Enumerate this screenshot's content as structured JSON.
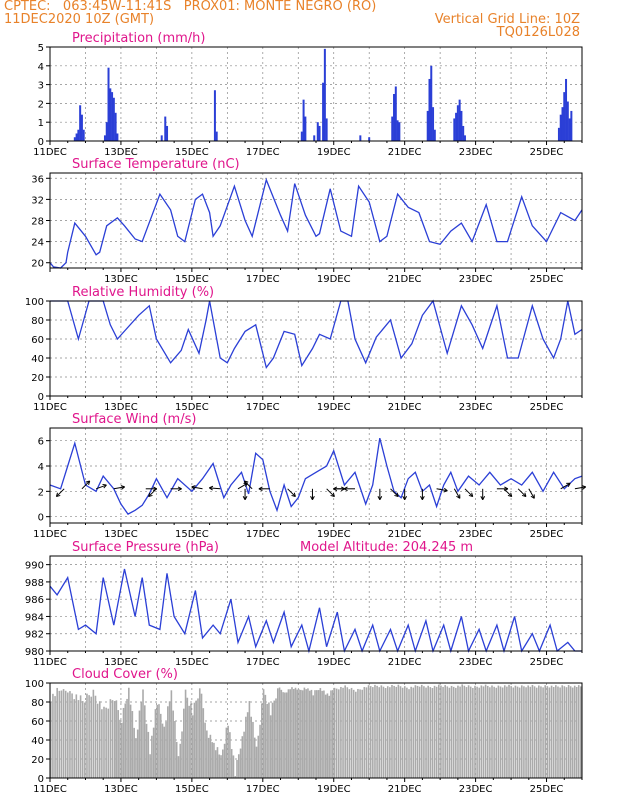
{
  "header": {
    "line1_left": "CPTEC:   063:45W-11:41S   PROX01: MONTE NEGRO (RO)",
    "line2_left": "11DEC2020 10Z (GMT)",
    "line2_right": "Vertical Grid Line: 10Z",
    "line3_right": "TQ0126L028"
  },
  "colors": {
    "header": "#e8822a",
    "title": "#e0168c",
    "series": "#2b3fd6",
    "cloud": "#aaaaaa",
    "grid": "#888888"
  },
  "chart_data": [
    {
      "type": "bar",
      "title": "Precipitation (mm/h)",
      "ylim": [
        0,
        5
      ],
      "yticks": [
        "0",
        "1",
        "2",
        "3",
        "4",
        "5"
      ],
      "x_labels": [
        "11DEC",
        "13DEC",
        "15DEC",
        "17DEC",
        "19DEC",
        "21DEC",
        "23DEC",
        "25DEC"
      ],
      "x_label_days": [
        0,
        2,
        4,
        6,
        8,
        10,
        12,
        14
      ],
      "x_range_days": [
        0,
        15
      ],
      "spikes": [
        [
          0.7,
          0.2
        ],
        [
          0.75,
          0.4
        ],
        [
          0.8,
          0.6
        ],
        [
          0.85,
          1.9
        ],
        [
          0.9,
          1.4
        ],
        [
          0.95,
          0.6
        ],
        [
          1.55,
          0.3
        ],
        [
          1.6,
          1.0
        ],
        [
          1.65,
          3.9
        ],
        [
          1.7,
          2.8
        ],
        [
          1.75,
          2.6
        ],
        [
          1.8,
          2.3
        ],
        [
          1.85,
          1.5
        ],
        [
          1.9,
          0.4
        ],
        [
          3.15,
          0.3
        ],
        [
          3.25,
          1.3
        ],
        [
          3.3,
          0.8
        ],
        [
          4.65,
          2.7
        ],
        [
          4.7,
          0.5
        ],
        [
          7.1,
          0.5
        ],
        [
          7.15,
          2.2
        ],
        [
          7.2,
          1.3
        ],
        [
          7.45,
          0.3
        ],
        [
          7.55,
          1.0
        ],
        [
          7.6,
          0.8
        ],
        [
          7.7,
          3.1
        ],
        [
          7.75,
          4.9
        ],
        [
          7.8,
          1.2
        ],
        [
          8.75,
          0.3
        ],
        [
          9.0,
          0.2
        ],
        [
          9.65,
          1.3
        ],
        [
          9.7,
          2.5
        ],
        [
          9.75,
          2.9
        ],
        [
          9.8,
          1.1
        ],
        [
          9.85,
          1.0
        ],
        [
          10.65,
          1.6
        ],
        [
          10.7,
          3.3
        ],
        [
          10.75,
          4.0
        ],
        [
          10.8,
          1.8
        ],
        [
          10.85,
          0.6
        ],
        [
          11.4,
          1.2
        ],
        [
          11.45,
          1.5
        ],
        [
          11.5,
          1.9
        ],
        [
          11.55,
          2.2
        ],
        [
          11.6,
          1.6
        ],
        [
          11.65,
          0.8
        ],
        [
          11.7,
          0.3
        ],
        [
          14.35,
          0.7
        ],
        [
          14.4,
          1.4
        ],
        [
          14.45,
          1.8
        ],
        [
          14.5,
          2.6
        ],
        [
          14.55,
          3.3
        ],
        [
          14.6,
          2.1
        ],
        [
          14.65,
          1.2
        ],
        [
          14.7,
          1.6
        ]
      ]
    },
    {
      "type": "line",
      "title": "Surface Temperature (nC)",
      "ylim": [
        19,
        37
      ],
      "yticks": [
        "20",
        "24",
        "28",
        "32",
        "36"
      ],
      "x_labels": [
        "13DEC",
        "15DEC",
        "17DEC",
        "19DEC",
        "21DEC",
        "23DEC",
        "25DEC"
      ],
      "x_label_days": [
        2,
        4,
        6,
        8,
        10,
        12,
        14
      ],
      "x": [
        0,
        0.1,
        0.3,
        0.45,
        0.5,
        0.7,
        1.0,
        1.3,
        1.4,
        1.6,
        1.9,
        2.1,
        2.4,
        2.6,
        3.1,
        3.4,
        3.6,
        3.8,
        4.1,
        4.3,
        4.5,
        4.6,
        4.8,
        5.2,
        5.5,
        5.7,
        6.1,
        6.5,
        6.7,
        6.9,
        7.2,
        7.5,
        7.6,
        7.9,
        8.2,
        8.5,
        8.7,
        9.0,
        9.3,
        9.5,
        9.8,
        10.1,
        10.4,
        10.7,
        11.0,
        11.3,
        11.6,
        11.9,
        12.3,
        12.6,
        12.9,
        13.3,
        13.6,
        14.0,
        14.4,
        14.8,
        15.0
      ],
      "y": [
        20,
        19.2,
        19,
        20,
        22,
        27.5,
        25,
        21.5,
        22,
        27,
        28.5,
        27,
        24.5,
        24,
        33,
        30,
        25,
        24,
        32,
        33,
        29.5,
        25,
        27,
        34.5,
        28,
        25,
        35.7,
        29,
        26,
        35,
        29,
        25,
        25.5,
        34,
        26,
        25,
        34.5,
        31.5,
        24,
        25,
        33,
        30.5,
        29.5,
        24,
        23.5,
        26,
        27.5,
        24,
        31,
        24,
        24,
        32.5,
        27,
        24,
        29.5,
        28,
        30
      ]
    },
    {
      "type": "line",
      "title": "Relative Humidity (%)",
      "ylim": [
        0,
        100
      ],
      "yticks": [
        "0",
        "20",
        "40",
        "60",
        "80",
        "100"
      ],
      "x_labels": [
        "11DEC",
        "13DEC",
        "15DEC",
        "17DEC",
        "19DEC",
        "21DEC",
        "23DEC",
        "25DEC"
      ],
      "x_label_days": [
        0,
        2,
        4,
        6,
        8,
        10,
        12,
        14
      ],
      "x": [
        0,
        0.5,
        0.8,
        1.1,
        1.5,
        1.7,
        1.9,
        2.5,
        2.8,
        3.0,
        3.4,
        3.7,
        3.9,
        4.2,
        4.4,
        4.5,
        4.8,
        5.0,
        5.2,
        5.5,
        5.8,
        6.1,
        6.3,
        6.6,
        6.9,
        7.1,
        7.4,
        7.6,
        7.9,
        8.2,
        8.4,
        8.6,
        8.9,
        9.2,
        9.6,
        9.9,
        10.2,
        10.5,
        10.8,
        11.2,
        11.6,
        11.9,
        12.2,
        12.6,
        12.9,
        13.2,
        13.6,
        13.9,
        14.2,
        14.4,
        14.6,
        14.8,
        15.0
      ],
      "y": [
        100,
        100,
        60,
        100,
        100,
        75,
        60,
        85,
        95,
        60,
        35,
        48,
        70,
        45,
        80,
        100,
        40,
        35,
        50,
        68,
        75,
        30,
        40,
        68,
        65,
        32,
        50,
        65,
        60,
        100,
        100,
        60,
        35,
        62,
        80,
        40,
        55,
        85,
        100,
        45,
        95,
        75,
        50,
        95,
        40,
        40,
        95,
        60,
        40,
        60,
        100,
        65,
        70
      ]
    },
    {
      "type": "line",
      "title": "Surface Wind (m/s)",
      "ylim": [
        -0.5,
        7
      ],
      "yticks": [
        "0",
        "2",
        "4",
        "6"
      ],
      "x_labels": [
        "11DEC",
        "13DEC",
        "15DEC",
        "17DEC",
        "19DEC",
        "21DEC",
        "23DEC",
        "25DEC"
      ],
      "x_label_days": [
        0,
        2,
        4,
        6,
        8,
        10,
        12,
        14
      ],
      "x": [
        0,
        0.3,
        0.5,
        0.7,
        1.0,
        1.3,
        1.5,
        1.8,
        2.0,
        2.2,
        2.4,
        2.6,
        2.8,
        3.0,
        3.3,
        3.6,
        4.0,
        4.3,
        4.6,
        4.9,
        5.1,
        5.4,
        5.6,
        5.8,
        6.0,
        6.2,
        6.4,
        6.6,
        6.8,
        7.0,
        7.2,
        7.5,
        7.8,
        8.0,
        8.3,
        8.6,
        8.9,
        9.1,
        9.3,
        9.5,
        9.7,
        9.9,
        10.1,
        10.3,
        10.5,
        10.7,
        10.9,
        11.1,
        11.3,
        11.5,
        11.8,
        12.1,
        12.4,
        12.7,
        13.0,
        13.3,
        13.6,
        13.9,
        14.2,
        14.5,
        14.8,
        15.0
      ],
      "y": [
        2.5,
        2.2,
        4,
        5.8,
        2.5,
        2.0,
        3.2,
        2.2,
        1.0,
        0.2,
        0.5,
        0.9,
        1.8,
        3.0,
        1.5,
        3.0,
        2.0,
        3.0,
        4.2,
        1.5,
        2.5,
        3.5,
        1.8,
        5.0,
        4.5,
        2.0,
        0.5,
        2.5,
        0.8,
        1.5,
        3.0,
        3.5,
        4.0,
        5.2,
        2.5,
        3.5,
        1.0,
        2.5,
        6.2,
        4.0,
        2.0,
        1.5,
        3.0,
        3.5,
        2.0,
        2.5,
        0.8,
        2.5,
        3.5,
        2.0,
        3.2,
        2.5,
        3.5,
        2.5,
        3.0,
        2.5,
        3.5,
        2.0,
        3.5,
        2.2,
        3.0,
        3.2
      ],
      "barbs": [
        [
          0.4,
          225
        ],
        [
          0.9,
          45
        ],
        [
          1.3,
          70
        ],
        [
          1.8,
          80
        ],
        [
          2.7,
          90
        ],
        [
          3.0,
          225
        ],
        [
          3.4,
          90
        ],
        [
          4.3,
          280
        ],
        [
          4.8,
          275
        ],
        [
          5.3,
          60
        ],
        [
          5.5,
          180
        ],
        [
          5.7,
          315
        ],
        [
          6.2,
          270
        ],
        [
          6.7,
          135
        ],
        [
          7.4,
          180
        ],
        [
          7.8,
          135
        ],
        [
          8.0,
          90
        ],
        [
          8.3,
          270
        ],
        [
          8.6,
          270
        ],
        [
          9.3,
          180
        ],
        [
          9.6,
          135
        ],
        [
          10.0,
          180
        ],
        [
          10.5,
          180
        ],
        [
          10.9,
          100
        ],
        [
          11.4,
          150
        ],
        [
          11.7,
          135
        ],
        [
          12.2,
          180
        ],
        [
          12.6,
          90
        ],
        [
          12.8,
          135
        ],
        [
          13.2,
          135
        ],
        [
          13.5,
          150
        ],
        [
          14.4,
          60
        ],
        [
          14.8,
          80
        ]
      ]
    },
    {
      "type": "line",
      "title": "Surface Pressure (hPa)",
      "subtitle": "Model Altitude: 204.245 m",
      "ylim": [
        980,
        991
      ],
      "yticks": [
        "980",
        "982",
        "984",
        "986",
        "988",
        "990"
      ],
      "x_labels": [
        "11DEC",
        "13DEC",
        "15DEC",
        "17DEC",
        "19DEC",
        "21DEC",
        "23DEC",
        "25DEC"
      ],
      "x_label_days": [
        0,
        2,
        4,
        6,
        8,
        10,
        12,
        14
      ],
      "x": [
        0,
        0.2,
        0.5,
        0.8,
        1.0,
        1.3,
        1.5,
        1.8,
        2.1,
        2.4,
        2.6,
        2.8,
        3.1,
        3.3,
        3.5,
        3.8,
        4.1,
        4.3,
        4.6,
        4.8,
        5.1,
        5.3,
        5.6,
        5.8,
        6.1,
        6.3,
        6.6,
        6.8,
        7.1,
        7.3,
        7.6,
        7.8,
        8.1,
        8.3,
        8.6,
        8.8,
        9.1,
        9.3,
        9.6,
        9.8,
        10.1,
        10.3,
        10.6,
        10.8,
        11.1,
        11.3,
        11.6,
        11.8,
        12.1,
        12.3,
        12.6,
        12.8,
        13.1,
        13.3,
        13.6,
        13.8,
        14.1,
        14.3,
        14.6,
        14.8,
        15.0
      ],
      "y": [
        987.5,
        986.5,
        988.5,
        982.5,
        983,
        982,
        988.5,
        983,
        989.5,
        984,
        988.5,
        983,
        982.5,
        989,
        984,
        982,
        987,
        981.5,
        983,
        982,
        986,
        981,
        984,
        980.5,
        983.5,
        981,
        984.5,
        980.5,
        983,
        980,
        985,
        980.5,
        984.5,
        980,
        982.5,
        980,
        983,
        980,
        982.5,
        980,
        983,
        980,
        983.5,
        980,
        983,
        980,
        984,
        980,
        982.5,
        980,
        983,
        980,
        984,
        980,
        982,
        980,
        983,
        980,
        981,
        980,
        980
      ]
    },
    {
      "type": "bar",
      "title": "Cloud Cover (%)",
      "ylim": [
        0,
        100
      ],
      "yticks": [
        "0",
        "20",
        "40",
        "60",
        "80",
        "100"
      ],
      "x_labels": [
        "11DEC",
        "13DEC",
        "15DEC",
        "17DEC",
        "19DEC",
        "21DEC",
        "23DEC",
        "25DEC"
      ],
      "x_label_days": [
        0,
        2,
        4,
        6,
        8,
        10,
        12,
        14
      ],
      "profile": [
        [
          0.0,
          85
        ],
        [
          0.3,
          93
        ],
        [
          0.6,
          90
        ],
        [
          0.9,
          80
        ],
        [
          1.2,
          92
        ],
        [
          1.5,
          70
        ],
        [
          1.8,
          85
        ],
        [
          2.0,
          60
        ],
        [
          2.2,
          95
        ],
        [
          2.4,
          40
        ],
        [
          2.6,
          92
        ],
        [
          2.8,
          30
        ],
        [
          3.0,
          80
        ],
        [
          3.2,
          55
        ],
        [
          3.4,
          92
        ],
        [
          3.6,
          20
        ],
        [
          3.8,
          88
        ],
        [
          4.0,
          70
        ],
        [
          4.2,
          95
        ],
        [
          4.4,
          50
        ],
        [
          4.6,
          35
        ],
        [
          4.8,
          20
        ],
        [
          5.0,
          60
        ],
        [
          5.2,
          5
        ],
        [
          5.4,
          45
        ],
        [
          5.6,
          80
        ],
        [
          5.8,
          30
        ],
        [
          6.0,
          92
        ],
        [
          6.2,
          70
        ],
        [
          6.4,
          95
        ],
        [
          6.6,
          90
        ],
        [
          6.8,
          95
        ],
        [
          7.0,
          92
        ],
        [
          7.2,
          95
        ],
        [
          7.4,
          90
        ],
        [
          7.6,
          95
        ],
        [
          7.8,
          88
        ],
        [
          8.0,
          94
        ],
        [
          8.3,
          96
        ],
        [
          8.6,
          92
        ],
        [
          8.9,
          96
        ],
        [
          9.2,
          97
        ],
        [
          9.5,
          96
        ],
        [
          9.8,
          97
        ],
        [
          10.1,
          95
        ],
        [
          10.4,
          97
        ],
        [
          10.7,
          96
        ],
        [
          11.0,
          97
        ],
        [
          11.3,
          96
        ],
        [
          11.6,
          97
        ],
        [
          11.9,
          96
        ],
        [
          12.2,
          97
        ],
        [
          12.5,
          96
        ],
        [
          12.8,
          97
        ],
        [
          13.1,
          96
        ],
        [
          13.4,
          97
        ],
        [
          13.7,
          96
        ],
        [
          14.0,
          97
        ],
        [
          14.3,
          96
        ],
        [
          14.6,
          97
        ],
        [
          15.0,
          96
        ]
      ]
    }
  ]
}
